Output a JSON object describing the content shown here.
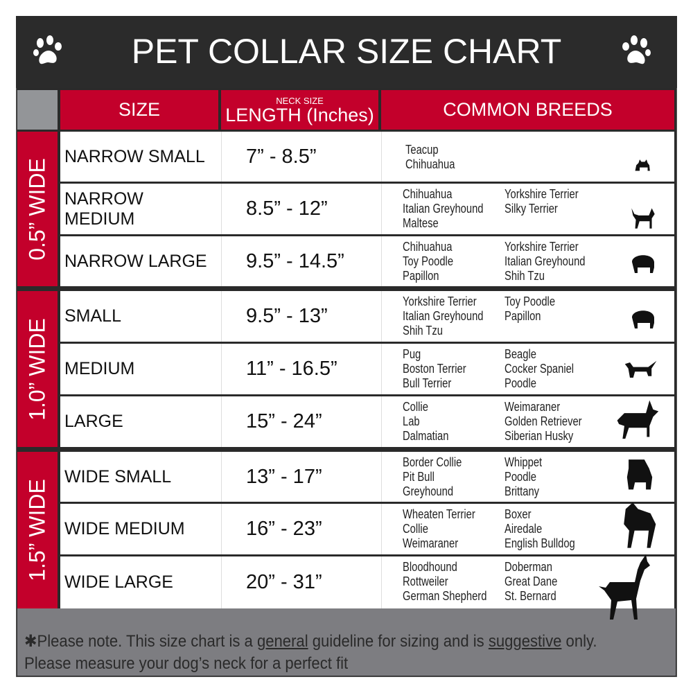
{
  "title": "PET COLLAR SIZE CHART",
  "colors": {
    "header_bg": "#2b2b2b",
    "accent_red": "#c3002b",
    "footer_gray": "#7d7d81"
  },
  "icons": [
    "paw-icon",
    "dog-silhouette-icon"
  ],
  "columns": {
    "size": "SIZE",
    "neck_size_small": "NECK SIZE",
    "length": "LENGTH (Inches)",
    "breeds": "COMMON BREEDS"
  },
  "groups": [
    {
      "label": "0.5” WIDE",
      "rows": [
        {
          "size": "NARROW SMALL",
          "length": "7” - 8.5”",
          "col1": [
            "Teacup",
            "Chihuahua"
          ],
          "col2": []
        },
        {
          "size": "NARROW MEDIUM",
          "length": "8.5” - 12”",
          "col1": [
            "Chihuahua",
            "Italian Greyhound",
            "Maltese"
          ],
          "col2": [
            "Yorkshire Terrier",
            "Silky Terrier"
          ]
        },
        {
          "size": "NARROW LARGE",
          "length": "9.5” - 14.5”",
          "col1": [
            "Chihuahua",
            "Toy Poodle",
            "Papillon"
          ],
          "col2": [
            "Yorkshire Terrier",
            "Italian Greyhound",
            "Shih Tzu"
          ]
        }
      ]
    },
    {
      "label": "1.0” WIDE",
      "rows": [
        {
          "size": "SMALL",
          "length": "9.5” - 13”",
          "col1": [
            "Yorkshire Terrier",
            "Italian Greyhound",
            "Shih Tzu"
          ],
          "col2": [
            "Toy Poodle",
            "Papillon"
          ]
        },
        {
          "size": "MEDIUM",
          "length": "11” - 16.5”",
          "col1": [
            "Pug",
            "Boston Terrier",
            "Bull Terrier"
          ],
          "col2": [
            "Beagle",
            "Cocker Spaniel",
            "Poodle"
          ]
        },
        {
          "size": "LARGE",
          "length": "15” - 24”",
          "col1": [
            "Collie",
            "Lab",
            "Dalmatian"
          ],
          "col2": [
            "Weimaraner",
            "Golden Retriever",
            "Siberian Husky"
          ]
        }
      ]
    },
    {
      "label": "1.5” WIDE",
      "rows": [
        {
          "size": "WIDE SMALL",
          "length": "13” - 17”",
          "col1": [
            "Border Collie",
            "Pit Bull",
            "Greyhound"
          ],
          "col2": [
            "Whippet",
            "Poodle",
            "Brittany"
          ]
        },
        {
          "size": "WIDE MEDIUM",
          "length": "16” - 23”",
          "col1": [
            "Wheaten Terrier",
            "Collie",
            "Weimaraner"
          ],
          "col2": [
            "Boxer",
            "Airedale",
            "English Bulldog"
          ]
        },
        {
          "size": "WIDE LARGE",
          "length": "20” - 31”",
          "col1": [
            "Bloodhound",
            "Rottweiler",
            "German Shepherd"
          ],
          "col2": [
            "Doberman",
            "Great Dane",
            "St. Bernard"
          ]
        }
      ]
    }
  ],
  "footer": {
    "p1": "✱Please note. This size chart is a ",
    "u1": "general",
    "p2": " guideline for sizing and is ",
    "u2": "suggestive",
    "p3": " only.",
    "line2": "Please measure your dog’s neck for a perfect fit"
  }
}
